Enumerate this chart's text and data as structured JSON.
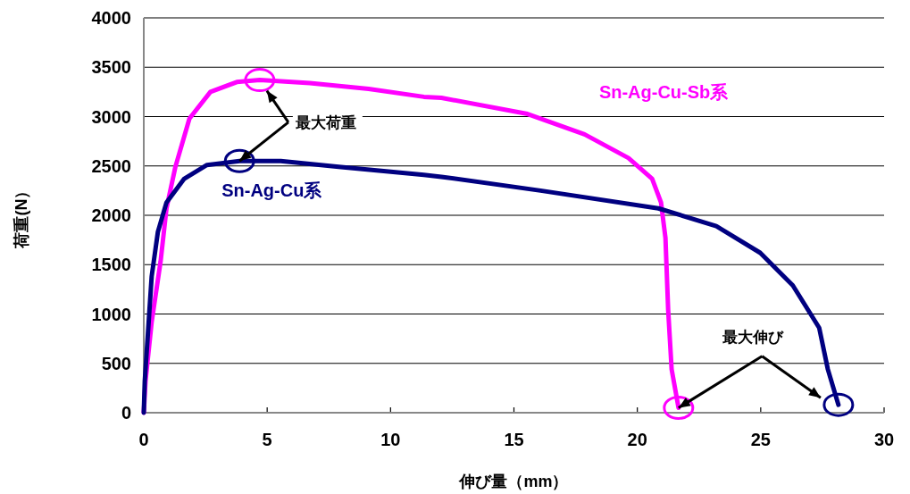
{
  "chart_data": {
    "type": "line",
    "xlabel": "伸び量（mm）",
    "ylabel": "荷重(N）",
    "xlim": [
      0,
      30
    ],
    "ylim": [
      0,
      4000
    ],
    "xticks": [
      0,
      5,
      10,
      15,
      20,
      25,
      30
    ],
    "yticks": [
      0,
      500,
      1000,
      1500,
      2000,
      2500,
      3000,
      3500,
      4000
    ],
    "grid": "y",
    "marker": "none",
    "line_style": "solid",
    "series": [
      {
        "name": "Sn-Ag-Cu-Sb系",
        "color": "#ff00ff",
        "x": [
          0,
          0.07,
          0.32,
          0.68,
          0.92,
          1.28,
          1.85,
          2.7,
          3.77,
          4.7,
          6.73,
          9.11,
          11.35,
          12.06,
          15.5,
          17.86,
          19.64,
          20.6,
          20.96,
          21.14,
          21.25,
          21.39,
          21.67
        ],
        "values": [
          0,
          320,
          920,
          1530,
          2070,
          2490,
          2980,
          3250,
          3350,
          3370,
          3340,
          3280,
          3200,
          3190,
          3030,
          2820,
          2580,
          2370,
          2130,
          1770,
          1040,
          440,
          50
        ]
      },
      {
        "name": "Sn-Ag-Cu系",
        "color": "#000080",
        "x": [
          0,
          0.04,
          0.32,
          0.57,
          0.92,
          1.64,
          2.56,
          3.88,
          5.55,
          7.9,
          11.35,
          12.06,
          16.08,
          20.85,
          23.2,
          24.98,
          26.3,
          27.37,
          27.72,
          28.15
        ],
        "values": [
          0,
          320,
          1380,
          1830,
          2130,
          2370,
          2510,
          2550,
          2550,
          2490,
          2410,
          2390,
          2250,
          2070,
          1890,
          1620,
          1290,
          860,
          440,
          80
        ]
      }
    ],
    "annotations": [
      {
        "text": "最大荷重",
        "x": 3.88,
        "y": 2550
      },
      {
        "text": "最大伸び",
        "x": 21.67,
        "y": 50
      }
    ]
  }
}
